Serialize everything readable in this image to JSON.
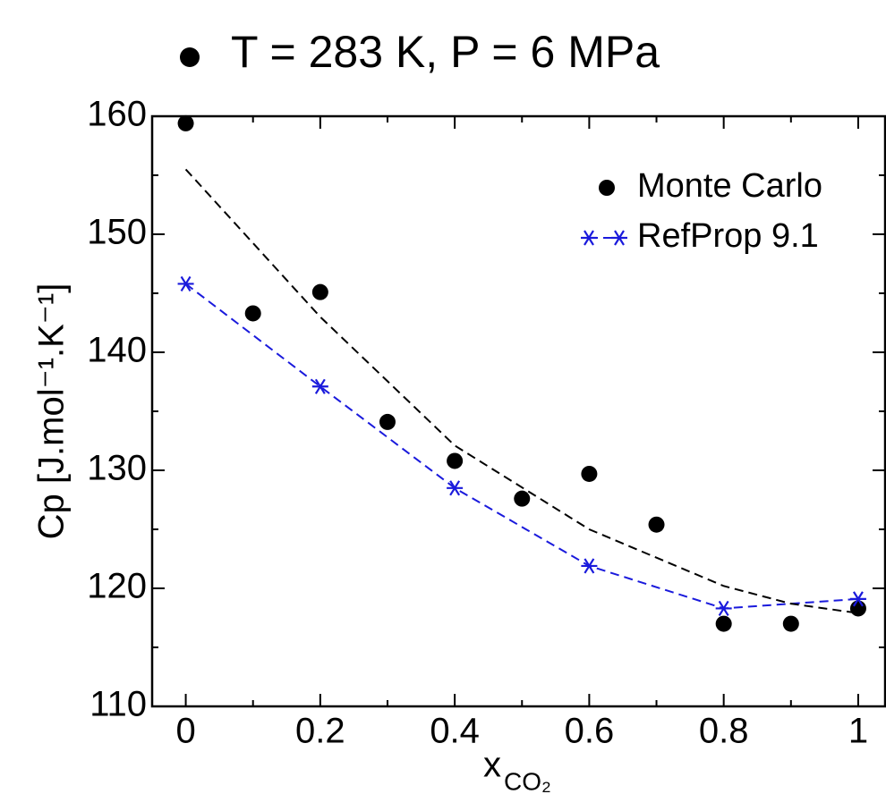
{
  "chart_data": {
    "type": "line",
    "title": "T = 283 K, P = 6 MPa",
    "xlabel": "x",
    "xlabel_subscript": "CO₂",
    "ylabel": "Cp  [J.mol⁻¹.K⁻¹]",
    "xlim": [
      -0.05,
      1.04
    ],
    "ylim": [
      110,
      160
    ],
    "xticks": [
      0,
      0.2,
      0.4,
      0.6,
      0.8,
      1
    ],
    "yticks": [
      110,
      120,
      130,
      140,
      150,
      160
    ],
    "legend": "upper right",
    "series": [
      {
        "name": "Monte Carlo",
        "color": "#000000",
        "marker": "circle",
        "line": false,
        "x": [
          0,
          0.1,
          0.2,
          0.3,
          0.4,
          0.5,
          0.6,
          0.7,
          0.8,
          0.9,
          1
        ],
        "values": [
          159.4,
          143.3,
          145.1,
          134.1,
          130.8,
          127.6,
          129.7,
          125.4,
          117.0,
          117.0,
          118.3
        ]
      },
      {
        "name": "RefProp 9.1",
        "color": "#1a1adc",
        "marker": "star",
        "line": true,
        "x": [
          0,
          0.2,
          0.4,
          0.6,
          0.8,
          1
        ],
        "values": [
          145.8,
          137.1,
          128.5,
          121.9,
          118.3,
          119.1
        ]
      },
      {
        "color": "#000000",
        "marker": "none",
        "line": true,
        "x": [
          0,
          0.2,
          0.4,
          0.6,
          0.8,
          0.9,
          1
        ],
        "values": [
          155.5,
          143.0,
          132.1,
          125.0,
          120.2,
          118.7,
          117.9
        ]
      }
    ]
  }
}
